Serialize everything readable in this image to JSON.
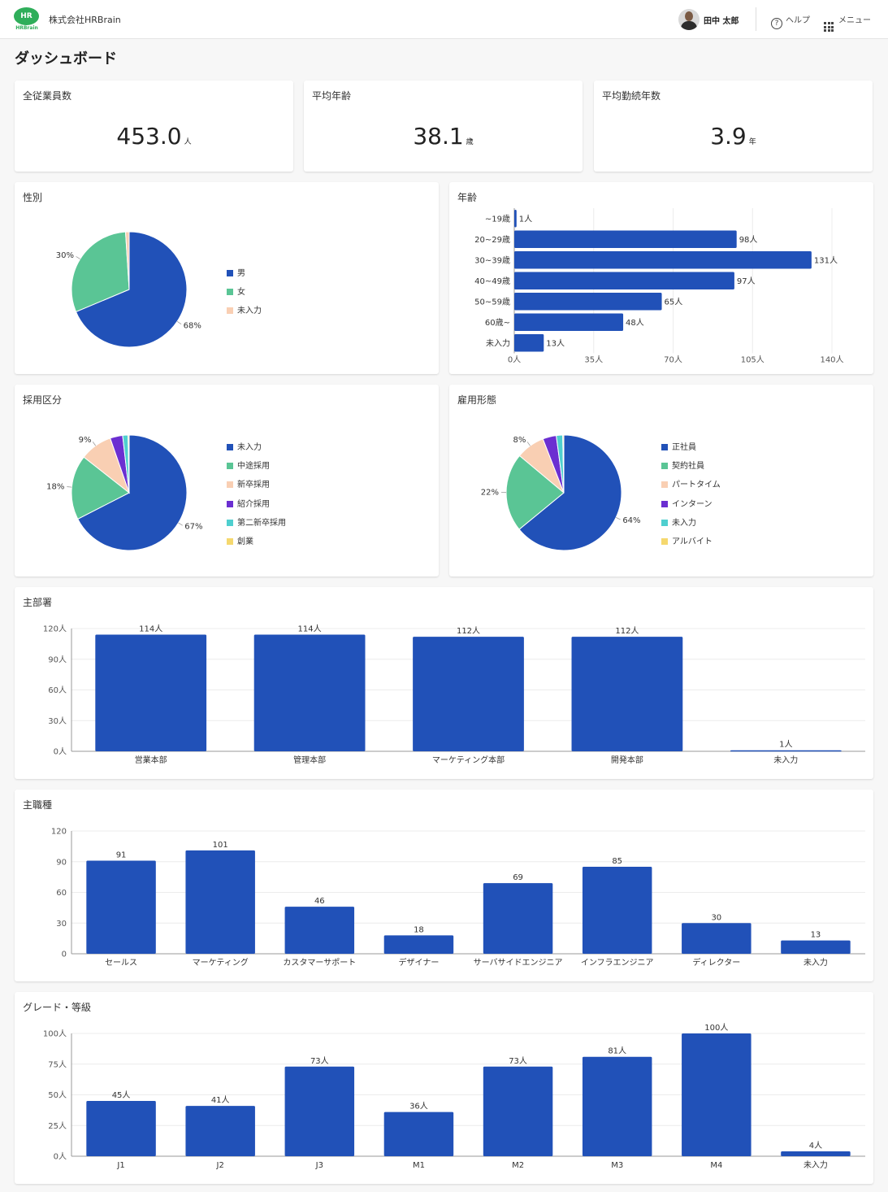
{
  "header": {
    "logo_top": "HR",
    "logo_bottom": "HRBrain",
    "company": "株式会社HRBrain",
    "user_name": "田中 太郎",
    "help_label": "ヘルプ",
    "menu_label": "メニュー"
  },
  "page_title": "ダッシュボード",
  "kpis": [
    {
      "label": "全従業員数",
      "value": "453.0",
      "unit": "人"
    },
    {
      "label": "平均年齢",
      "value": "38.1",
      "unit": "歳"
    },
    {
      "label": "平均勤続年数",
      "value": "3.9",
      "unit": "年"
    }
  ],
  "colors": {
    "blue": "#2151b8",
    "green": "#5ac595",
    "peach": "#f9cfb3",
    "purple": "#6b2fd1",
    "cyan": "#4fcfcf",
    "yellow": "#f5d86e"
  },
  "chart_data": [
    {
      "id": "gender",
      "type": "pie",
      "title": "性別",
      "labels": [
        "男",
        "女",
        "未入力"
      ],
      "values": [
        68,
        30,
        1
      ],
      "value_labels": [
        "68%",
        "30%",
        ""
      ],
      "colors": [
        "#2151b8",
        "#5ac595",
        "#f9cfb3"
      ]
    },
    {
      "id": "age",
      "type": "bar",
      "orientation": "horizontal",
      "title": "年齢",
      "categories": [
        "~19歳",
        "20~29歳",
        "30~39歳",
        "40~49歳",
        "50~59歳",
        "60歳~",
        "未入力"
      ],
      "values": [
        1,
        98,
        131,
        97,
        65,
        48,
        13
      ],
      "unit": "人",
      "xlim": [
        0,
        140
      ],
      "ticks": [
        0,
        35,
        70,
        105,
        140
      ]
    },
    {
      "id": "hiring",
      "type": "pie",
      "title": "採用区分",
      "labels": [
        "未入力",
        "中途採用",
        "新卒採用",
        "紹介採用",
        "第二新卒採用",
        "創業"
      ],
      "values": [
        67,
        18,
        9,
        3.5,
        1.5,
        0.3
      ],
      "value_labels": [
        "67%",
        "18%",
        "9%",
        "",
        "",
        ""
      ],
      "colors": [
        "#2151b8",
        "#5ac595",
        "#f9cfb3",
        "#6b2fd1",
        "#4fcfcf",
        "#f5d86e"
      ]
    },
    {
      "id": "employment",
      "type": "pie",
      "title": "雇用形態",
      "labels": [
        "正社員",
        "契約社員",
        "パートタイム",
        "インターン",
        "未入力",
        "アルバイト"
      ],
      "values": [
        64,
        22,
        8,
        3.8,
        1.8,
        0.3
      ],
      "value_labels": [
        "64%",
        "22%",
        "8%",
        "",
        "",
        ""
      ],
      "colors": [
        "#2151b8",
        "#5ac595",
        "#f9cfb3",
        "#6b2fd1",
        "#4fcfcf",
        "#f5d86e"
      ]
    },
    {
      "id": "department",
      "type": "bar",
      "title": "主部署",
      "categories": [
        "営業本部",
        "管理本部",
        "マーケティング本部",
        "開発本部",
        "未入力"
      ],
      "values": [
        114,
        114,
        112,
        112,
        1
      ],
      "unit": "人",
      "ylim": [
        0,
        120
      ],
      "ticks": [
        0,
        30,
        60,
        90,
        120
      ]
    },
    {
      "id": "job",
      "type": "bar",
      "title": "主職種",
      "categories": [
        "セールス",
        "マーケティング",
        "カスタマーサポート",
        "デザイナー",
        "サーバサイドエンジニア",
        "インフラエンジニア",
        "ディレクター",
        "未入力"
      ],
      "values": [
        91,
        101,
        46,
        18,
        69,
        85,
        30,
        13
      ],
      "unit": "",
      "ylim": [
        0,
        120
      ],
      "ticks": [
        0,
        30,
        60,
        90,
        120
      ]
    },
    {
      "id": "grade",
      "type": "bar",
      "title": "グレード・等級",
      "categories": [
        "J1",
        "J2",
        "J3",
        "M1",
        "M2",
        "M3",
        "M4",
        "未入力"
      ],
      "values": [
        45,
        41,
        73,
        36,
        73,
        81,
        100,
        4
      ],
      "unit": "人",
      "ylim": [
        0,
        100
      ],
      "ticks": [
        0,
        25,
        50,
        75,
        100
      ]
    }
  ]
}
